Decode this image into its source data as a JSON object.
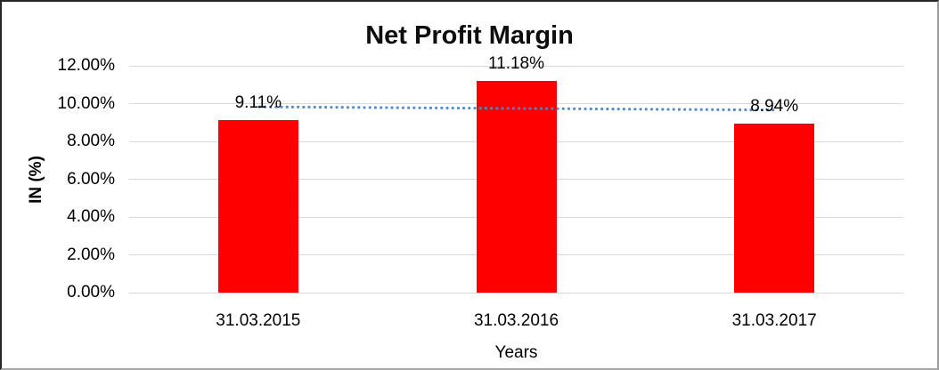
{
  "chart_data": {
    "type": "bar",
    "title": "Net Profit Margin",
    "xlabel": "Years",
    "ylabel": "IN (%)",
    "categories": [
      "31.03.2015",
      "31.03.2016",
      "31.03.2017"
    ],
    "values": [
      9.11,
      11.18,
      8.94
    ],
    "data_labels": [
      "9.11%",
      "11.18%",
      "8.94%"
    ],
    "ylim": [
      0,
      12
    ],
    "y_ticks": [
      {
        "value": 0,
        "label": "0.00%"
      },
      {
        "value": 2,
        "label": "2.00%"
      },
      {
        "value": 4,
        "label": "4.00%"
      },
      {
        "value": 6,
        "label": "6.00%"
      },
      {
        "value": 8,
        "label": "8.00%"
      },
      {
        "value": 10,
        "label": "10.00%"
      },
      {
        "value": 12,
        "label": "12.00%"
      }
    ],
    "grid": true,
    "legend": "none",
    "bar_color": "#FF0000",
    "gridline_color": "#D9D9D9",
    "text_color": "#000000",
    "trendline": {
      "type": "linear",
      "style": "dotted",
      "color": "#4E86C8",
      "start_value": 9.83,
      "end_value": 9.66
    }
  }
}
